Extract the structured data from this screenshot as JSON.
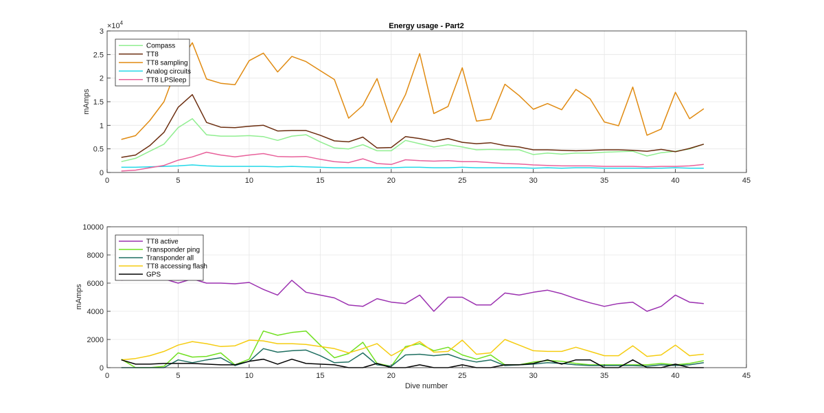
{
  "chart_data": [
    {
      "type": "line",
      "title": "Energy usage - Part2",
      "xlabel": "",
      "ylabel": "mAmps",
      "exponent_label": "×10",
      "exponent_power": "4",
      "xlim": [
        0,
        45
      ],
      "ylim": [
        0,
        30000
      ],
      "xticks": [
        0,
        5,
        10,
        15,
        20,
        25,
        30,
        35,
        40,
        45
      ],
      "yticks": [
        0,
        5000,
        10000,
        15000,
        20000,
        25000,
        30000
      ],
      "ytick_labels": [
        "0",
        "0.5",
        "1",
        "1.5",
        "2",
        "2.5",
        "3"
      ],
      "grid": true,
      "legend_position": "top-left",
      "x": [
        1,
        2,
        3,
        4,
        5,
        6,
        7,
        8,
        9,
        10,
        11,
        12,
        13,
        14,
        15,
        16,
        17,
        18,
        19,
        20,
        21,
        22,
        23,
        24,
        25,
        26,
        27,
        28,
        29,
        30,
        31,
        32,
        33,
        34,
        35,
        36,
        37,
        38,
        39,
        40,
        41,
        42
      ],
      "series": [
        {
          "name": "Compass",
          "color": "#90ee90",
          "values": [
            2300,
            3000,
            4500,
            6000,
            9500,
            11400,
            8000,
            7700,
            7700,
            7800,
            7600,
            6800,
            7700,
            8000,
            6500,
            5200,
            5000,
            5900,
            4600,
            4600,
            6800,
            6100,
            5400,
            5900,
            5400,
            4800,
            4900,
            4800,
            4800,
            3800,
            4100,
            3900,
            4100,
            4100,
            4300,
            4400,
            4500,
            3500,
            4200,
            4500,
            5000,
            6000
          ]
        },
        {
          "name": "TT8",
          "color": "#6b2d0f",
          "values": [
            3200,
            3700,
            5700,
            8500,
            13800,
            16500,
            10600,
            9600,
            9500,
            9800,
            10000,
            8800,
            8900,
            8900,
            7900,
            6700,
            6500,
            7500,
            5200,
            5300,
            7600,
            7200,
            6600,
            7200,
            6400,
            6100,
            6300,
            5700,
            5400,
            4800,
            4800,
            4700,
            4600,
            4700,
            4800,
            4800,
            4700,
            4500,
            4900,
            4400,
            5100,
            6000
          ]
        },
        {
          "name": "TT8 sampling",
          "color": "#e08a10",
          "values": [
            7000,
            7800,
            11000,
            15000,
            23000,
            27500,
            19800,
            18900,
            18600,
            23700,
            25300,
            21300,
            24600,
            23500,
            21600,
            19700,
            11500,
            14200,
            19900,
            10600,
            16500,
            25200,
            12500,
            14000,
            22200,
            10900,
            11300,
            18700,
            16300,
            13400,
            14600,
            13300,
            17600,
            15600,
            10700,
            9900,
            18100,
            7900,
            9200,
            17000,
            11400,
            13500
          ]
        },
        {
          "name": "Analog circuits",
          "color": "#20d8e8",
          "values": [
            1100,
            1100,
            1200,
            1300,
            1400,
            1600,
            1400,
            1300,
            1300,
            1300,
            1300,
            1200,
            1300,
            1200,
            1100,
            1000,
            1000,
            1000,
            1000,
            1000,
            1100,
            1100,
            1000,
            1000,
            1100,
            1000,
            1000,
            1000,
            1000,
            900,
            1000,
            900,
            1000,
            1000,
            900,
            900,
            900,
            900,
            900,
            1000,
            900,
            900
          ]
        },
        {
          "name": "TT8 LPSleep",
          "color": "#e8609a",
          "values": [
            300,
            500,
            1000,
            1500,
            2600,
            3300,
            4300,
            3700,
            3300,
            3700,
            4000,
            3400,
            3300,
            3400,
            2800,
            2300,
            2100,
            2900,
            1900,
            1700,
            2700,
            2500,
            2400,
            2500,
            2300,
            2300,
            2100,
            1900,
            1800,
            1600,
            1500,
            1400,
            1400,
            1400,
            1300,
            1300,
            1300,
            1200,
            1300,
            1300,
            1400,
            1700
          ]
        }
      ]
    },
    {
      "type": "line",
      "title": "",
      "xlabel": "Dive number",
      "ylabel": "mAmps",
      "xlim": [
        0,
        45
      ],
      "ylim": [
        0,
        10000
      ],
      "xticks": [
        0,
        5,
        10,
        15,
        20,
        25,
        30,
        35,
        40,
        45
      ],
      "yticks": [
        0,
        2000,
        4000,
        6000,
        8000,
        10000
      ],
      "ytick_labels": [
        "0",
        "2000",
        "4000",
        "6000",
        "8000",
        "10000"
      ],
      "grid": true,
      "legend_position": "top-left",
      "x": [
        1,
        2,
        3,
        4,
        5,
        6,
        7,
        8,
        9,
        10,
        11,
        12,
        13,
        14,
        15,
        16,
        17,
        18,
        19,
        20,
        21,
        22,
        23,
        24,
        25,
        26,
        27,
        28,
        29,
        30,
        31,
        32,
        33,
        34,
        35,
        36,
        37,
        38,
        39,
        40,
        41,
        42
      ],
      "series": [
        {
          "name": "TT8 active",
          "color": "#9b30b0",
          "values": [
            6200,
            6400,
            6300,
            6300,
            6000,
            6300,
            6000,
            6000,
            5950,
            6050,
            5550,
            5150,
            6200,
            5350,
            5150,
            4950,
            4450,
            4350,
            4900,
            4650,
            4550,
            5150,
            4000,
            5000,
            5000,
            4450,
            4450,
            5300,
            5150,
            5350,
            5500,
            5250,
            4900,
            4600,
            4350,
            4550,
            4650,
            4000,
            4350,
            5150,
            4650,
            4550
          ]
        },
        {
          "name": "Transponder ping",
          "color": "#70e020",
          "values": [
            600,
            0,
            0,
            100,
            1050,
            750,
            800,
            1050,
            200,
            600,
            2600,
            2300,
            2500,
            2600,
            1600,
            700,
            1000,
            1800,
            300,
            100,
            1500,
            1700,
            1200,
            1450,
            900,
            600,
            900,
            200,
            200,
            400,
            500,
            450,
            300,
            200,
            200,
            200,
            200,
            200,
            300,
            200,
            300,
            500
          ]
        },
        {
          "name": "Transponder all",
          "color": "#1e6e60",
          "values": [
            0,
            0,
            0,
            0,
            550,
            350,
            550,
            700,
            150,
            450,
            1350,
            1100,
            1200,
            1250,
            850,
            350,
            400,
            1050,
            200,
            100,
            900,
            950,
            850,
            950,
            600,
            400,
            550,
            150,
            200,
            250,
            350,
            300,
            200,
            150,
            150,
            150,
            150,
            100,
            200,
            150,
            200,
            350
          ]
        },
        {
          "name": "TT8 accessing flash",
          "color": "#f5cc10",
          "values": [
            550,
            650,
            850,
            1150,
            1600,
            1850,
            1700,
            1500,
            1550,
            1950,
            1900,
            1700,
            1700,
            1650,
            1500,
            1350,
            1050,
            1350,
            1700,
            850,
            1400,
            1850,
            1100,
            1150,
            1950,
            950,
            1050,
            2000,
            1600,
            1200,
            1150,
            1150,
            1450,
            1150,
            850,
            850,
            1550,
            800,
            900,
            1600,
            850,
            950
          ]
        },
        {
          "name": "GPS",
          "color": "#000000",
          "values": [
            550,
            250,
            250,
            300,
            300,
            300,
            250,
            200,
            200,
            450,
            600,
            250,
            600,
            300,
            250,
            200,
            0,
            0,
            300,
            0,
            0,
            200,
            0,
            0,
            200,
            0,
            0,
            200,
            200,
            300,
            550,
            250,
            550,
            550,
            0,
            0,
            550,
            0,
            0,
            250,
            0,
            0
          ]
        }
      ]
    }
  ]
}
